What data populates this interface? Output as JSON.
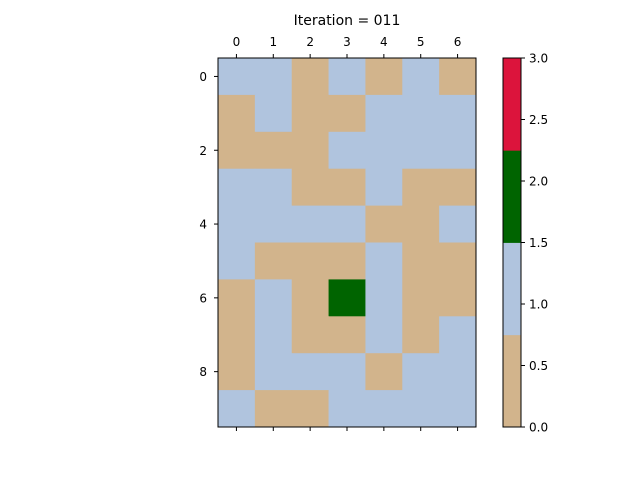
{
  "chart_data": {
    "type": "heatmap",
    "title": "Iteration = 011",
    "x_ticks": [
      "0",
      "1",
      "2",
      "3",
      "4",
      "5",
      "6"
    ],
    "y_ticks": [
      "0",
      "2",
      "4",
      "6",
      "8"
    ],
    "x_tick_marks_bottom": true,
    "grid": false,
    "values": [
      [
        1,
        1,
        0,
        1,
        0,
        1,
        0
      ],
      [
        0,
        1,
        0,
        0,
        1,
        1,
        1
      ],
      [
        0,
        0,
        0,
        1,
        1,
        1,
        1
      ],
      [
        1,
        1,
        0,
        0,
        1,
        0,
        0
      ],
      [
        1,
        1,
        1,
        1,
        0,
        0,
        1
      ],
      [
        1,
        0,
        0,
        0,
        1,
        0,
        0
      ],
      [
        0,
        1,
        0,
        2,
        1,
        0,
        0
      ],
      [
        0,
        1,
        0,
        0,
        1,
        0,
        1
      ],
      [
        0,
        1,
        1,
        1,
        0,
        1,
        1
      ],
      [
        1,
        0,
        0,
        1,
        1,
        1,
        1
      ]
    ],
    "colormap": {
      "0": "#d2b48c",
      "1": "#b0c4de",
      "2": "#006400",
      "3": "#dc143c"
    },
    "colorbar": {
      "range": [
        0.0,
        3.0
      ],
      "ticks": [
        "0.0",
        "0.5",
        "1.0",
        "1.5",
        "2.0",
        "2.5",
        "3.0"
      ],
      "bands": [
        {
          "from": 0.0,
          "to": 0.75,
          "color": "#d2b48c"
        },
        {
          "from": 0.75,
          "to": 1.5,
          "color": "#b0c4de"
        },
        {
          "from": 1.5,
          "to": 2.25,
          "color": "#006400"
        },
        {
          "from": 2.25,
          "to": 3.0,
          "color": "#dc143c"
        }
      ]
    }
  }
}
